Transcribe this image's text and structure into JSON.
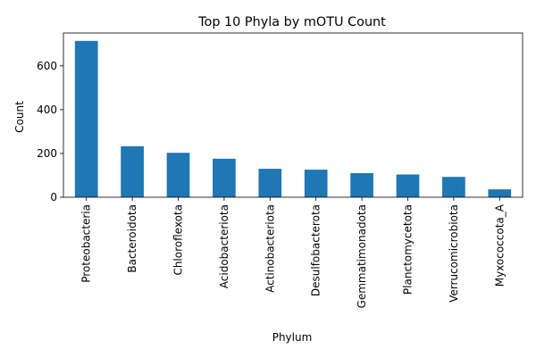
{
  "chart_data": {
    "type": "bar",
    "title": "Top 10 Phyla by mOTU Count",
    "xlabel": "Phylum",
    "ylabel": "Count",
    "categories": [
      "Proteobacteria",
      "Bacteroidota",
      "Chloroflexota",
      "Acidobacteriota",
      "Actinobacteriota",
      "Desulfobacterota",
      "Gemmatimonadota",
      "Planctomycetota",
      "Verrucomicrobiota",
      "Myxococcota_A"
    ],
    "values": [
      714,
      233,
      203,
      176,
      130,
      126,
      110,
      104,
      93,
      36
    ],
    "ylim": [
      0,
      750
    ],
    "yticks": [
      0,
      200,
      400,
      600
    ],
    "grid": false,
    "legend": "none",
    "bar_color": "#1f77b4"
  }
}
